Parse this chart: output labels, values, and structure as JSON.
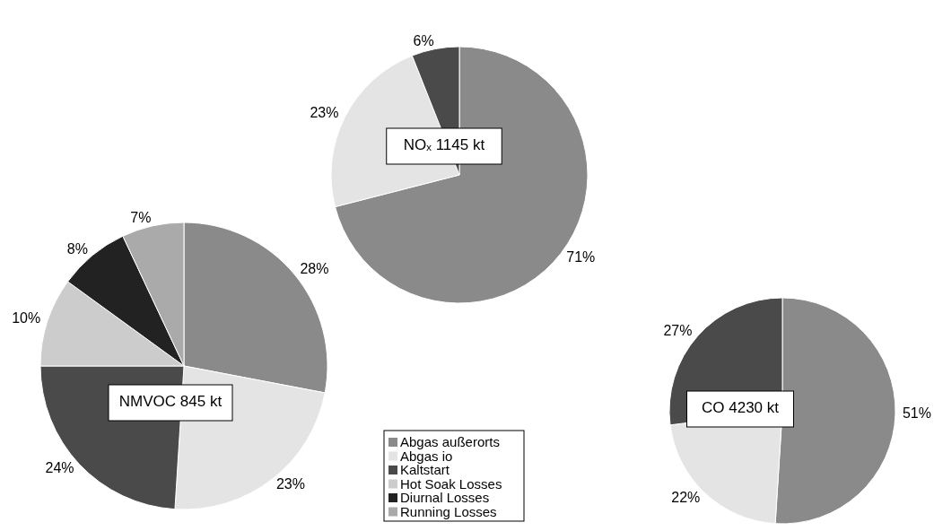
{
  "chart_data": [
    {
      "type": "pie",
      "title": "NOₓ 1145 kt",
      "categories": [
        null,
        null,
        null
      ],
      "values": [
        71,
        23,
        6
      ],
      "value_labels": [
        "71%",
        "23%",
        "6%"
      ],
      "colors": [
        "#8a8a8a",
        "#e4e4e4",
        "#4a4a4a"
      ]
    },
    {
      "type": "pie",
      "title": "NMVOC 845 kt",
      "categories": [
        "Abgas außerorts",
        "Abgas io",
        "Kaltstart",
        "Hot Soak Losses",
        "Diurnal Losses",
        "Running Losses"
      ],
      "values": [
        28,
        23,
        24,
        10,
        8,
        7
      ],
      "value_labels": [
        "28%",
        "23%",
        "24%",
        "10%",
        "8%",
        "7%"
      ],
      "colors": [
        "#8a8a8a",
        "#e4e4e4",
        "#4a4a4a",
        "#cccccc",
        "#222222",
        "#aaaaaa"
      ],
      "legend": "right"
    },
    {
      "type": "pie",
      "title": "CO 4230 kt",
      "categories": [
        null,
        null,
        null
      ],
      "values": [
        51,
        22,
        27
      ],
      "value_labels": [
        "51%",
        "22%",
        "27%"
      ],
      "colors": [
        "#8a8a8a",
        "#e4e4e4",
        "#4a4a4a"
      ]
    }
  ]
}
